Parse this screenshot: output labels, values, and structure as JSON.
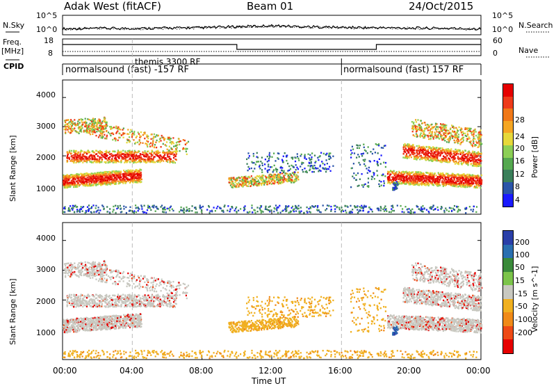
{
  "header": {
    "station": "Adak West (fitACF)",
    "beam": "Beam 01",
    "date": "24/Oct/2015"
  },
  "side_labels": {
    "nsky": "N.Sky",
    "nsearch": "N.Search",
    "freq": "Freq.",
    "freq_unit": "[MHz]",
    "nave": "Nave",
    "cpid": "CPID"
  },
  "noise_axis": {
    "left_ticks": [
      "10^5",
      "10^0"
    ],
    "right_ticks": [
      "10^5",
      "10^0"
    ]
  },
  "freq_axis": {
    "left_ticks": [
      "18",
      "8"
    ],
    "right_ticks": [
      "60",
      "0"
    ]
  },
  "cpid_labels": {
    "program_1": "normalsound (fast) -157 RF",
    "program_2": "themis 3300 RF",
    "program_3": "normalsound (fast) 157 RF"
  },
  "colors": {
    "power_scale": [
      "#1a1aff",
      "#2a54a8",
      "#3a7f5a",
      "#55a84f",
      "#8ccf55",
      "#e6d83a",
      "#f5a623",
      "#f07818",
      "#ee3a1a",
      "#e60000"
    ],
    "velocity_scale": [
      "#2a3fa8",
      "#2a6fb0",
      "#3a8a3a",
      "#7cc44a",
      "#c8c8c0",
      "#f0b020",
      "#f08a18",
      "#ee4a16",
      "#e60000"
    ]
  },
  "chart_data": [
    {
      "type": "line",
      "panel": "noise",
      "series": [
        {
          "name": "N.Sky",
          "x": [
            "00:00",
            "02:00",
            "04:00",
            "06:00",
            "08:00",
            "10:00",
            "12:00",
            "14:00",
            "16:00",
            "18:00",
            "20:00",
            "22:00",
            "24:00"
          ],
          "values": [
            1.4,
            1.5,
            1.5,
            1.6,
            1.7,
            2.0,
            2.3,
            2.0,
            1.8,
            1.7,
            1.6,
            1.5,
            1.4
          ]
        },
        {
          "name": "N.Search",
          "x": [
            "00:00",
            "02:00",
            "04:00",
            "06:00",
            "08:00",
            "10:00",
            "12:00",
            "14:00",
            "16:00",
            "18:00",
            "20:00",
            "22:00",
            "24:00"
          ],
          "values": [
            1.3,
            1.4,
            1.4,
            1.5,
            1.6,
            1.9,
            2.2,
            1.9,
            1.7,
            1.6,
            1.5,
            1.4,
            1.3
          ]
        }
      ]
    },
    {
      "type": "line",
      "panel": "frequency",
      "xlabel": "",
      "series": [
        {
          "name": "Freq.",
          "x": [
            "00:00",
            "10:00",
            "10:00",
            "18:00",
            "18:00",
            "24:00"
          ],
          "values": [
            15,
            15,
            11.5,
            11.5,
            15,
            15
          ]
        },
        {
          "name": "Nave",
          "x": [
            "00:00",
            "24:00"
          ],
          "values": [
            12,
            12
          ]
        }
      ]
    },
    {
      "type": "heatmap",
      "panel": "power",
      "xlabel": "Time UT",
      "ylabel": "Slant Range [km]",
      "x_ticks": [
        "00:00",
        "04:00",
        "08:00",
        "12:00",
        "16:00",
        "20:00",
        "00:00"
      ],
      "y_ticks": [
        "1000",
        "2000",
        "3000",
        "4000"
      ],
      "ylim": [
        0,
        4600
      ],
      "colorbar_label": "Power [dB]",
      "colorbar_ticks": [
        "4",
        "8",
        "12",
        "16",
        "20",
        "24",
        "28"
      ]
    },
    {
      "type": "heatmap",
      "panel": "velocity",
      "xlabel": "Time UT",
      "ylabel": "Slant Range [km]",
      "x_ticks": [
        "00:00",
        "04:00",
        "08:00",
        "12:00",
        "16:00",
        "20:00",
        "00:00"
      ],
      "y_ticks": [
        "1000",
        "2000",
        "3000",
        "4000"
      ],
      "ylim": [
        0,
        4600
      ],
      "colorbar_label": "Velocity [m s^-1]",
      "colorbar_ticks": [
        "200",
        "100",
        "50",
        "15",
        "-15",
        "-50",
        "-100",
        "-200"
      ]
    }
  ],
  "x_axis_title": "Time UT"
}
